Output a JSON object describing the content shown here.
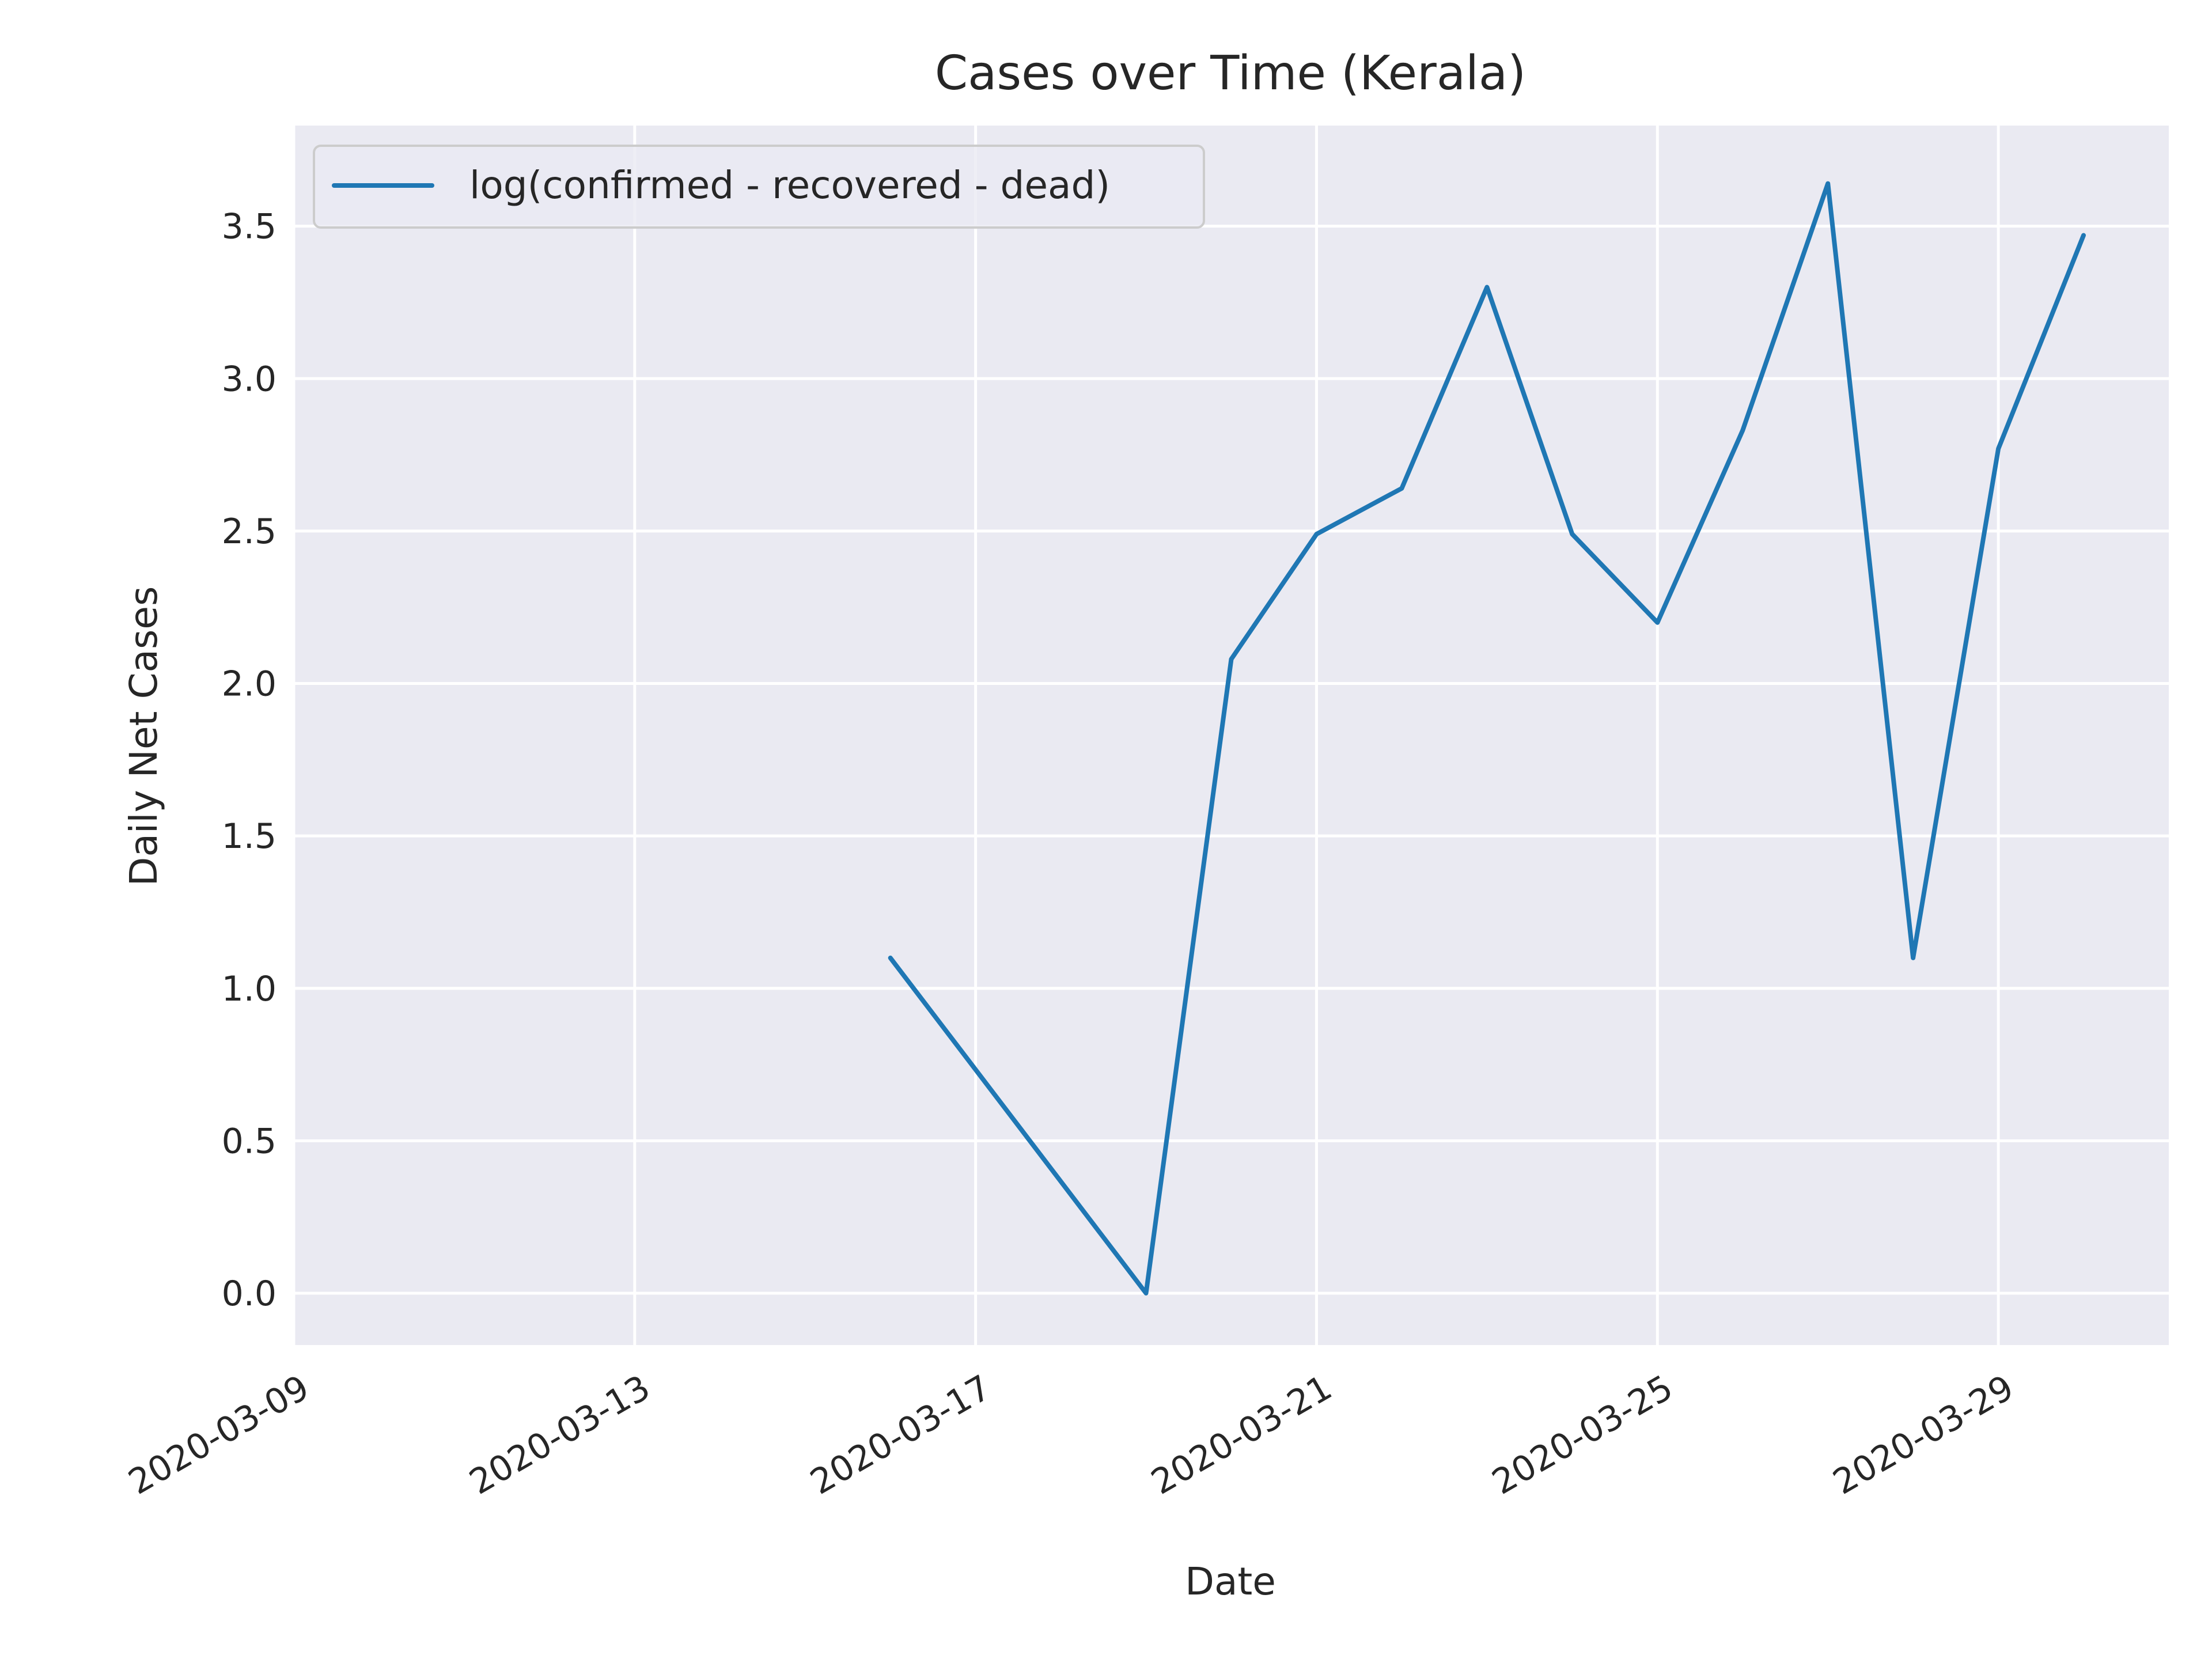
{
  "chart_data": {
    "type": "line",
    "title": "Cases over Time (Kerala)",
    "xlabel": "Date",
    "ylabel": "Daily Net Cases",
    "x_axis_type": "date",
    "xlim": [
      "2020-03-09",
      "2020-03-31"
    ],
    "ylim": [
      -0.17,
      3.83
    ],
    "x_ticks": [
      "2020-03-09",
      "2020-03-13",
      "2020-03-17",
      "2020-03-21",
      "2020-03-25",
      "2020-03-29"
    ],
    "y_ticks": [
      0.0,
      0.5,
      1.0,
      1.5,
      2.0,
      2.5,
      3.0,
      3.5
    ],
    "y_tick_labels": [
      "0.0",
      "0.5",
      "1.0",
      "1.5",
      "2.0",
      "2.5",
      "3.0",
      "3.5"
    ],
    "grid": true,
    "legend_position": "top-left",
    "background_color": "#eaeaf2",
    "series": [
      {
        "name": "log(confirmed - recovered - dead)",
        "color": "#1f77b4",
        "points": [
          {
            "x": "2020-03-16",
            "y": 1.1
          },
          {
            "x": "2020-03-19",
            "y": 0.0
          },
          {
            "x": "2020-03-20",
            "y": 2.08
          },
          {
            "x": "2020-03-21",
            "y": 2.49
          },
          {
            "x": "2020-03-22",
            "y": 2.64
          },
          {
            "x": "2020-03-23",
            "y": 3.3
          },
          {
            "x": "2020-03-24",
            "y": 2.49
          },
          {
            "x": "2020-03-25",
            "y": 2.2
          },
          {
            "x": "2020-03-26",
            "y": 2.83
          },
          {
            "x": "2020-03-27",
            "y": 3.64
          },
          {
            "x": "2020-03-28",
            "y": 1.1
          },
          {
            "x": "2020-03-29",
            "y": 2.77
          },
          {
            "x": "2020-03-30",
            "y": 3.47
          }
        ]
      }
    ]
  }
}
